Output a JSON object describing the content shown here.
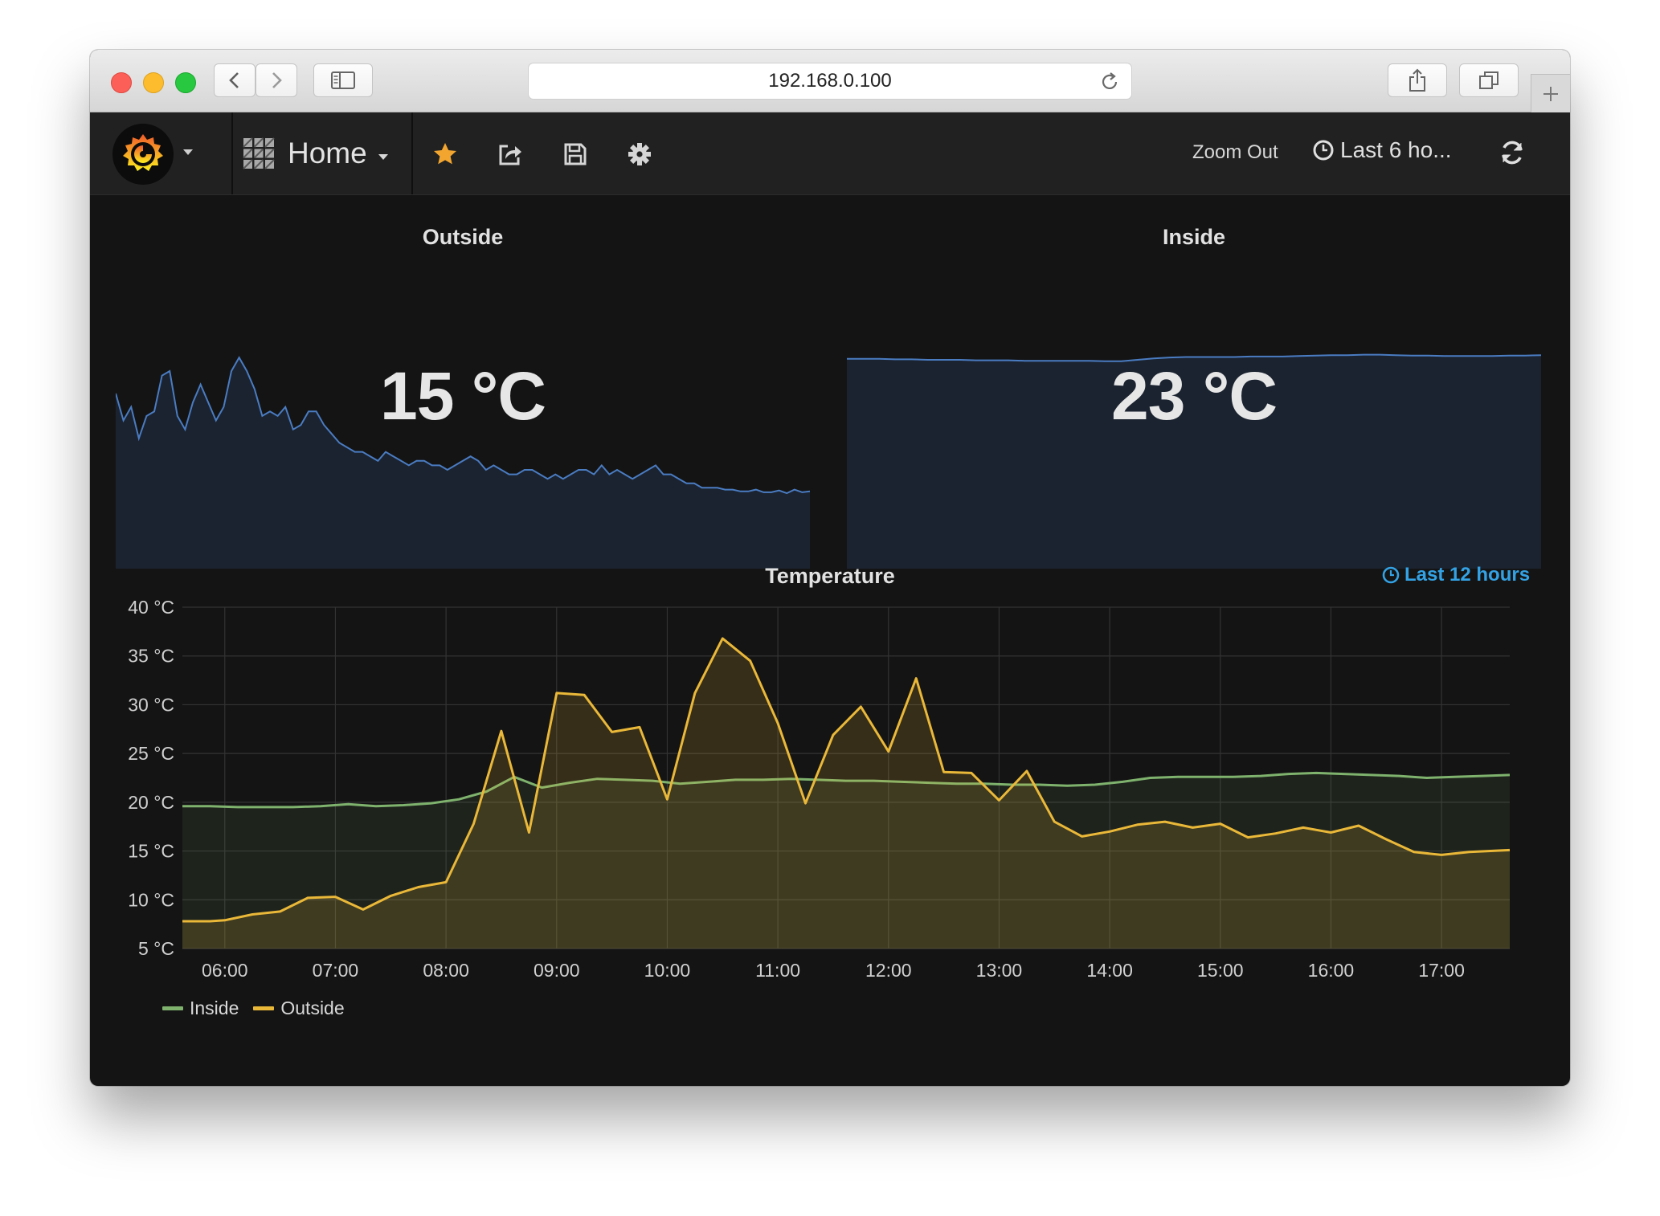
{
  "browser": {
    "url": "192.168.0.100"
  },
  "navbar": {
    "dashboard_title": "Home",
    "zoom_out": "Zoom Out",
    "time_range": "Last 6 ho..."
  },
  "colors": {
    "inside": "#7eb26d",
    "outside": "#eab839",
    "sparkline": "#4a7cc2",
    "accent": "#33a2e5"
  },
  "panels": {
    "outside": {
      "title": "Outside",
      "value": "15 °C",
      "sparkline": [
        19.5,
        16.5,
        18.0,
        14.5,
        17.0,
        17.5,
        21.5,
        22.0,
        17.0,
        15.5,
        18.5,
        20.5,
        18.5,
        16.5,
        18.0,
        22.0,
        23.5,
        22.0,
        20.0,
        17.0,
        17.5,
        17.0,
        18.0,
        15.5,
        16.0,
        17.5,
        17.5,
        16.0,
        15.0,
        14.0,
        13.5,
        13.0,
        13.0,
        12.5,
        12.0,
        13.0,
        12.5,
        12.0,
        11.5,
        12.0,
        12.0,
        11.5,
        11.5,
        11.0,
        11.5,
        12.0,
        12.5,
        12.0,
        11.0,
        11.5,
        11.0,
        10.5,
        10.5,
        11.0,
        11.0,
        10.5,
        10.0,
        10.5,
        10.0,
        10.5,
        11.0,
        11.0,
        10.5,
        11.5,
        10.5,
        11.0,
        10.5,
        10.0,
        10.5,
        11.0,
        11.5,
        10.5,
        10.5,
        10.0,
        9.5,
        9.5,
        9.0,
        9.0,
        9.0,
        8.8,
        8.8,
        8.6,
        8.6,
        8.8,
        8.5,
        8.5,
        8.7,
        8.4,
        8.8,
        8.5,
        8.6
      ]
    },
    "inside": {
      "title": "Inside",
      "value": "23 °C",
      "sparkline": [
        22.4,
        22.4,
        22.4,
        22.35,
        22.35,
        22.3,
        22.3,
        22.3,
        22.25,
        22.25,
        22.25,
        22.2,
        22.2,
        22.2,
        22.2,
        22.2,
        22.15,
        22.15,
        22.3,
        22.45,
        22.55,
        22.6,
        22.6,
        22.6,
        22.6,
        22.65,
        22.65,
        22.65,
        22.7,
        22.75,
        22.8,
        22.8,
        22.85,
        22.85,
        22.8,
        22.75,
        22.75,
        22.7,
        22.7,
        22.7,
        22.7,
        22.75,
        22.75,
        22.8
      ]
    },
    "temperature": {
      "title": "Temperature",
      "time_override": "Last 12 hours"
    }
  },
  "chart_data": {
    "type": "line",
    "title": "Temperature",
    "xlabel": "",
    "ylabel": "",
    "y_ticks": [
      "40 °C",
      "35 °C",
      "30 °C",
      "25 °C",
      "20 °C",
      "15 °C",
      "10 °C",
      "5 °C"
    ],
    "ylim": [
      5,
      40
    ],
    "x_ticks": [
      "06:00",
      "07:00",
      "08:00",
      "09:00",
      "10:00",
      "11:00",
      "12:00",
      "13:00",
      "14:00",
      "15:00",
      "16:00",
      "17:00"
    ],
    "xlim": [
      "05:37",
      "17:37"
    ],
    "grid": true,
    "legend_position": "bottom-left",
    "series": [
      {
        "name": "Inside",
        "color": "#7eb26d",
        "area": true,
        "x": [
          "05:37",
          "05:52",
          "06:07",
          "06:22",
          "06:37",
          "06:52",
          "07:07",
          "07:22",
          "07:37",
          "07:52",
          "08:07",
          "08:22",
          "08:37",
          "08:52",
          "09:07",
          "09:22",
          "09:37",
          "09:52",
          "10:07",
          "10:22",
          "10:37",
          "10:52",
          "11:07",
          "11:22",
          "11:37",
          "11:52",
          "12:07",
          "12:22",
          "12:37",
          "12:52",
          "13:07",
          "13:22",
          "13:37",
          "13:52",
          "14:07",
          "14:22",
          "14:37",
          "14:52",
          "15:07",
          "15:22",
          "15:37",
          "15:52",
          "16:07",
          "16:22",
          "16:37",
          "16:52",
          "17:07",
          "17:22",
          "17:37"
        ],
        "values": [
          19.6,
          19.6,
          19.5,
          19.5,
          19.5,
          19.6,
          19.8,
          19.6,
          19.7,
          19.9,
          20.3,
          21.1,
          22.6,
          21.5,
          22.0,
          22.4,
          22.3,
          22.2,
          21.9,
          22.1,
          22.3,
          22.3,
          22.4,
          22.3,
          22.2,
          22.2,
          22.1,
          22.0,
          21.9,
          21.9,
          21.8,
          21.8,
          21.7,
          21.8,
          22.1,
          22.5,
          22.6,
          22.6,
          22.6,
          22.7,
          22.9,
          23.0,
          22.9,
          22.8,
          22.7,
          22.5,
          22.6,
          22.7,
          22.8
        ]
      },
      {
        "name": "Outside",
        "color": "#eab839",
        "area": true,
        "x": [
          "05:37",
          "05:52",
          "06:00",
          "06:15",
          "06:30",
          "06:45",
          "07:00",
          "07:15",
          "07:30",
          "07:45",
          "08:00",
          "08:15",
          "08:30",
          "08:45",
          "09:00",
          "09:15",
          "09:30",
          "09:45",
          "10:00",
          "10:15",
          "10:30",
          "10:45",
          "11:00",
          "11:15",
          "11:30",
          "11:45",
          "12:00",
          "12:15",
          "12:30",
          "12:45",
          "13:00",
          "13:15",
          "13:30",
          "13:45",
          "14:00",
          "14:15",
          "14:30",
          "14:45",
          "15:00",
          "15:15",
          "15:30",
          "15:45",
          "16:00",
          "16:15",
          "16:30",
          "16:45",
          "17:00",
          "17:15",
          "17:37"
        ],
        "values": [
          7.8,
          7.8,
          7.9,
          8.5,
          8.8,
          10.2,
          10.3,
          9.0,
          10.4,
          11.3,
          11.8,
          17.8,
          27.3,
          16.9,
          31.2,
          31.0,
          27.2,
          27.7,
          20.3,
          31.2,
          36.8,
          34.5,
          28.1,
          19.9,
          26.9,
          29.8,
          25.2,
          32.7,
          23.1,
          23.0,
          20.2,
          23.2,
          18.0,
          16.5,
          17.0,
          17.7,
          18.0,
          17.4,
          17.8,
          16.4,
          16.8,
          17.4,
          16.9,
          17.6,
          16.2,
          14.9,
          14.6,
          14.9,
          15.1
        ]
      }
    ]
  }
}
